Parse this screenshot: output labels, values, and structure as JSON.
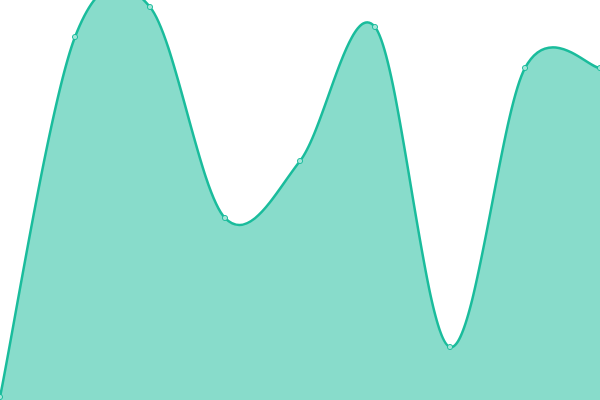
{
  "chart_data": {
    "type": "area",
    "categories": [
      null,
      null,
      null,
      null,
      null,
      null,
      null,
      null,
      null
    ],
    "series": [
      {
        "color": "#1abc9c",
        "values": [
          3,
          363,
          393,
          182,
          239,
          373,
          53,
          332,
          332
        ]
      }
    ],
    "ylim": [
      0,
      400
    ],
    "grid": false
  }
}
